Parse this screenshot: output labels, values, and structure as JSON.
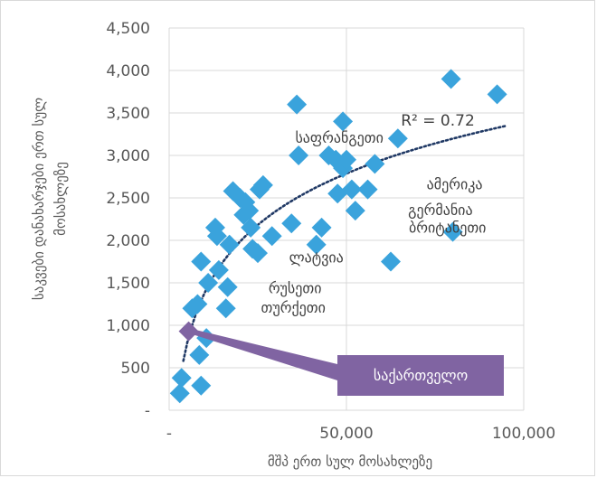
{
  "chart_data": {
    "type": "scatter",
    "xlabel": "მშპ ერთ სულ მოსახლეზე",
    "ylabel": "საკვები დანახარჯები ერთ სულ მოსახლეზე",
    "xlim": [
      0,
      100000
    ],
    "ylim": [
      0,
      4500
    ],
    "x_ticks": [
      {
        "value": 0,
        "label": "-"
      },
      {
        "value": 50000,
        "label": "50,000"
      },
      {
        "value": 100000,
        "label": "100,000"
      }
    ],
    "y_ticks": [
      {
        "value": 0,
        "label": "-"
      },
      {
        "value": 500,
        "label": "500"
      },
      {
        "value": 1000,
        "label": "1,000"
      },
      {
        "value": 1500,
        "label": "1,500"
      },
      {
        "value": 2000,
        "label": "2,000"
      },
      {
        "value": 2500,
        "label": "2,500"
      },
      {
        "value": 3000,
        "label": "3,000"
      },
      {
        "value": 3500,
        "label": "3,500"
      },
      {
        "value": 4000,
        "label": "4,000"
      },
      {
        "value": 4500,
        "label": "4,500"
      }
    ],
    "grid": "vertical and horizontal major gridlines",
    "series": [
      {
        "color": "#3aa3dc",
        "marker": "diamond",
        "points": [
          [
            3000,
            200
          ],
          [
            3500,
            380
          ],
          [
            9000,
            290
          ],
          [
            8500,
            650
          ],
          [
            10500,
            850
          ],
          [
            6500,
            1200
          ],
          [
            8000,
            1250
          ],
          [
            9000,
            1750
          ],
          [
            11000,
            1500
          ],
          [
            14000,
            1650
          ],
          [
            13000,
            2150
          ],
          [
            13500,
            2050
          ],
          [
            17000,
            1950
          ],
          [
            16500,
            1450
          ],
          [
            16000,
            1200
          ],
          [
            18000,
            2580
          ],
          [
            20000,
            2500
          ],
          [
            21500,
            2450
          ],
          [
            21000,
            2300
          ],
          [
            22500,
            2350
          ],
          [
            23000,
            2150
          ],
          [
            23500,
            1900
          ],
          [
            25000,
            1850
          ],
          [
            25500,
            2600
          ],
          [
            26500,
            2650
          ],
          [
            29000,
            2050
          ],
          [
            34500,
            2200
          ],
          [
            36000,
            3600
          ],
          [
            36500,
            3000
          ],
          [
            41500,
            1950
          ],
          [
            43000,
            2150
          ],
          [
            45000,
            3000
          ],
          [
            47000,
            2950
          ],
          [
            47500,
            2550
          ],
          [
            49000,
            2850
          ],
          [
            49000,
            3400
          ],
          [
            50000,
            2950
          ],
          [
            51500,
            2600
          ],
          [
            52500,
            2350
          ],
          [
            56000,
            2600
          ],
          [
            58000,
            2900
          ],
          [
            62500,
            1750
          ],
          [
            64500,
            3200
          ],
          [
            79500,
            3900
          ],
          [
            80000,
            2100
          ],
          [
            92500,
            3720
          ]
        ]
      },
      {
        "name": "საქართველო",
        "color": "#8064a2",
        "marker": "diamond",
        "points": [
          [
            5500,
            930
          ]
        ]
      }
    ],
    "trendline": {
      "type": "logarithmic",
      "color": "#1f3864",
      "style": "dotted",
      "x_range": [
        4000,
        95000
      ],
      "r_squared_label": "R² = 0.72"
    },
    "annotations": [
      {
        "text": "საფრანგეთი",
        "x": 48000,
        "y": 3150
      },
      {
        "text": "ამერიკა",
        "x": 80500,
        "y": 2600
      },
      {
        "text": "გერმანია",
        "x": 76500,
        "y": 2300
      },
      {
        "text": "ბრიტანეთი",
        "x": 78500,
        "y": 2090
      },
      {
        "text": "ლატვია",
        "x": 41500,
        "y": 1740
      },
      {
        "text": "რუსეთი",
        "x": 35500,
        "y": 1380
      },
      {
        "text": "თურქეთი",
        "x": 35000,
        "y": 1150
      }
    ],
    "callout": {
      "text": "საქართველო",
      "fill": "#8064a2"
    }
  }
}
